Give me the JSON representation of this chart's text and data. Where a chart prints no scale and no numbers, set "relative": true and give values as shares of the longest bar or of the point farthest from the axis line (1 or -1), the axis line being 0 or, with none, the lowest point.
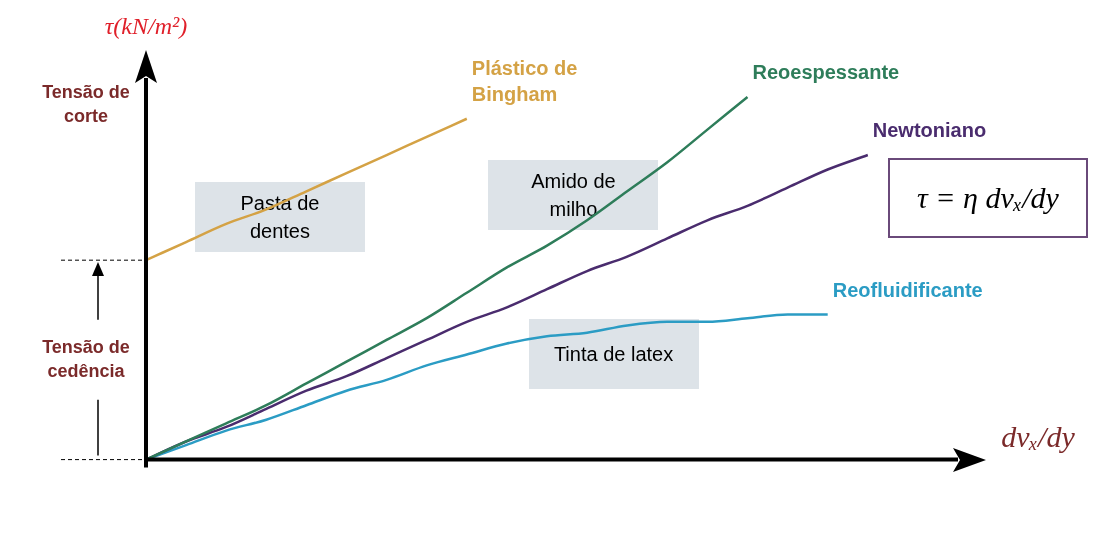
{
  "chart_data": {
    "type": "line",
    "relative": true,
    "ylabel": "τ(kN/m²)",
    "xlabel": "dvₓ/dy",
    "grid": false,
    "legend": false,
    "marker": "none",
    "categories": [
      null,
      null,
      null,
      null,
      null,
      null,
      null,
      null,
      null,
      null,
      null,
      null,
      null,
      null,
      null,
      null,
      null,
      null,
      null,
      null,
      null
    ],
    "series": [
      {
        "name": "Plástico de Bingham",
        "color": "#d4a245",
        "values": [
          0.55,
          0.6,
          0.65,
          0.69,
          0.74,
          0.79,
          0.84,
          0.89,
          0.94,
          null,
          null,
          null,
          null,
          null,
          null,
          null,
          null,
          null,
          null,
          null,
          null
        ]
      },
      {
        "name": "Reoespessante",
        "color": "#2e7d5a",
        "values": [
          0,
          0.05,
          0.1,
          0.15,
          0.21,
          0.27,
          0.33,
          0.39,
          0.46,
          0.53,
          0.59,
          0.66,
          0.74,
          0.82,
          0.91,
          1,
          null,
          null,
          null,
          null,
          null
        ]
      },
      {
        "name": "Newtoniano",
        "color": "#4a2c6e",
        "values": [
          0,
          0.05,
          0.09,
          0.14,
          0.19,
          0.23,
          0.28,
          0.33,
          0.38,
          0.42,
          0.47,
          0.52,
          0.56,
          0.61,
          0.66,
          0.7,
          0.75,
          0.8,
          0.84,
          null,
          null
        ]
      },
      {
        "name": "Reofluidificante",
        "color": "#2b9cc4",
        "values": [
          0,
          0.04,
          0.08,
          0.11,
          0.15,
          0.19,
          0.22,
          0.26,
          0.29,
          0.32,
          0.34,
          0.35,
          0.37,
          0.38,
          0.38,
          0.39,
          0.4,
          0.4,
          null,
          null,
          null
        ]
      }
    ],
    "annotations": [
      "Tensão de corte",
      "τ = η dvₓ/dy",
      "Pasta de dentes",
      "Amido de milho",
      "Tinta de latex",
      "Tensão de cedência"
    ]
  }
}
